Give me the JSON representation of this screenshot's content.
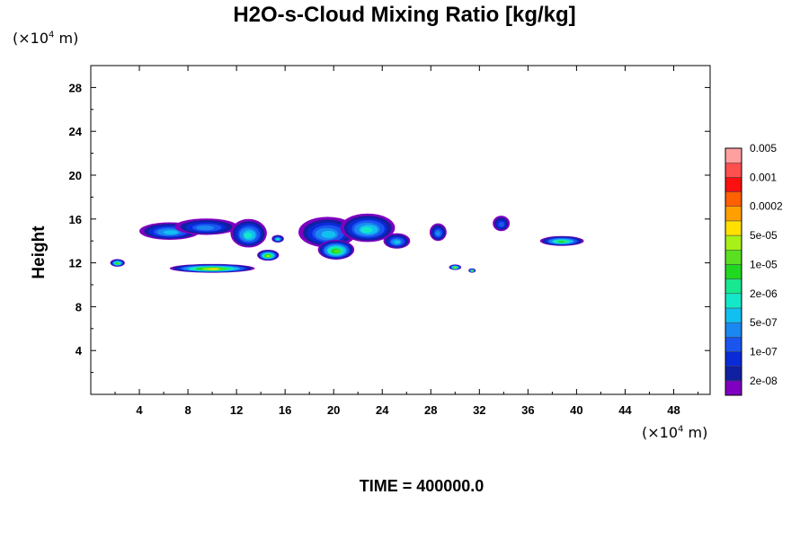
{
  "chart_data": {
    "type": "heatmap",
    "title": "H2O-s-Cloud Mixing Ratio [kg/kg]",
    "ylabel": "Height",
    "xlabel": "",
    "y_unit_label": "(×10",
    "y_unit_exp": "4",
    "y_unit_tail": " m)",
    "x_unit_label": "(×10",
    "x_unit_exp": "4",
    "x_unit_tail": " m)",
    "footer": "TIME = 400000.0",
    "xlim": [
      0,
      51
    ],
    "ylim": [
      0,
      30
    ],
    "x_ticks": [
      4,
      8,
      12,
      16,
      20,
      24,
      28,
      32,
      36,
      40,
      44,
      48
    ],
    "y_ticks": [
      4,
      8,
      12,
      16,
      20,
      24,
      28
    ],
    "colorbar": {
      "colors": [
        "#7f00c0",
        "#1020a0",
        "#0a2ad8",
        "#1a55f0",
        "#1a88f0",
        "#12c0f0",
        "#14e8c8",
        "#18e890",
        "#20d820",
        "#5ae020",
        "#a8f018",
        "#ffe000",
        "#ffa000",
        "#ff6000",
        "#ff1010",
        "#ff5050",
        "#ffa0a0"
      ],
      "labels": [
        "2e-08",
        "1e-07",
        "5e-07",
        "2e-06",
        "1e-05",
        "5e-05",
        "0.0002",
        "0.001",
        "0.005"
      ]
    },
    "clouds": [
      {
        "x": 2.2,
        "y": 12.0,
        "w": 1.2,
        "h": 0.7,
        "level": 9
      },
      {
        "x": 6.5,
        "y": 14.9,
        "w": 5.0,
        "h": 1.6,
        "level": 5
      },
      {
        "x": 9.5,
        "y": 15.3,
        "w": 5.2,
        "h": 1.5,
        "level": 4
      },
      {
        "x": 13.0,
        "y": 14.7,
        "w": 3.0,
        "h": 2.6,
        "level": 6
      },
      {
        "x": 15.4,
        "y": 14.2,
        "w": 1.0,
        "h": 0.7,
        "level": 6
      },
      {
        "x": 19.5,
        "y": 14.8,
        "w": 4.8,
        "h": 2.8,
        "level": 5
      },
      {
        "x": 22.8,
        "y": 15.2,
        "w": 4.5,
        "h": 2.6,
        "level": 6
      },
      {
        "x": 25.2,
        "y": 14.0,
        "w": 2.2,
        "h": 1.4,
        "level": 5
      },
      {
        "x": 28.6,
        "y": 14.8,
        "w": 1.4,
        "h": 1.6,
        "level": 4
      },
      {
        "x": 33.8,
        "y": 15.6,
        "w": 1.4,
        "h": 1.4,
        "level": 3
      },
      {
        "x": 38.8,
        "y": 14.0,
        "w": 3.6,
        "h": 0.9,
        "level": 8
      },
      {
        "x": 10.0,
        "y": 11.5,
        "w": 7.0,
        "h": 0.8,
        "level": 11
      },
      {
        "x": 14.6,
        "y": 12.7,
        "w": 1.8,
        "h": 1.0,
        "level": 10
      },
      {
        "x": 20.2,
        "y": 13.2,
        "w": 3.0,
        "h": 1.8,
        "level": 9
      },
      {
        "x": 30.0,
        "y": 11.6,
        "w": 1.0,
        "h": 0.5,
        "level": 10
      },
      {
        "x": 31.4,
        "y": 11.3,
        "w": 0.6,
        "h": 0.4,
        "level": 9
      }
    ]
  }
}
